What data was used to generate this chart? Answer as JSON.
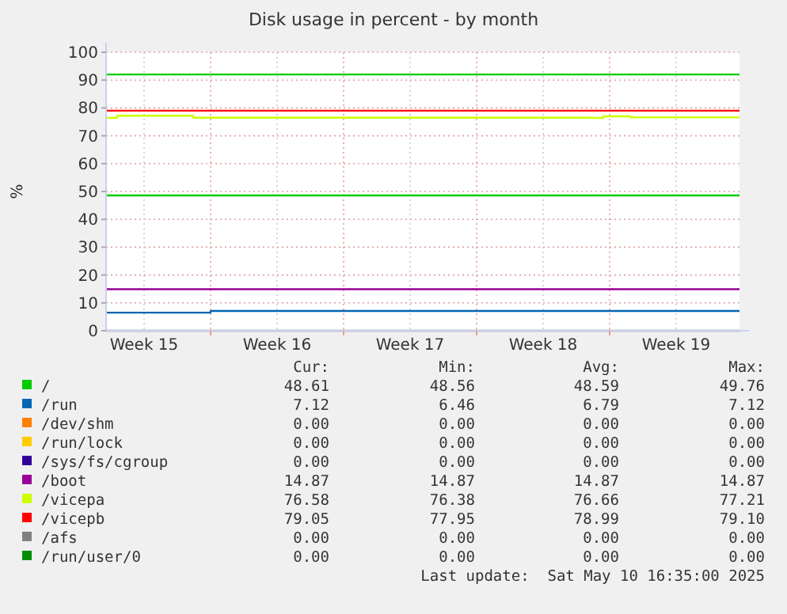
{
  "chart_data": {
    "type": "line",
    "title": "Disk usage in percent - by month",
    "ylabel": "%",
    "xlim": [
      "2025-04-08T12:00",
      "2025-05-11T20:00"
    ],
    "xticks": [
      {
        "value": "2025-04-10T12:00",
        "label": "Week 15"
      },
      {
        "value": "2025-04-14T00:00",
        "label": null
      },
      {
        "value": "2025-04-17T12:00",
        "label": "Week 16"
      },
      {
        "value": "2025-04-21T00:00",
        "label": null
      },
      {
        "value": "2025-04-24T12:00",
        "label": "Week 17"
      },
      {
        "value": "2025-04-28T00:00",
        "label": null
      },
      {
        "value": "2025-05-01T12:00",
        "label": "Week 18"
      },
      {
        "value": "2025-05-05T00:00",
        "label": null
      },
      {
        "value": "2025-05-08T12:00",
        "label": "Week 19"
      }
    ],
    "ylim": [
      0,
      100
    ],
    "yticks": [
      0,
      10,
      20,
      30,
      40,
      50,
      60,
      70,
      80,
      90,
      100
    ],
    "grid": true,
    "legend": "bottom",
    "line_style": "solid",
    "marker": "none",
    "ref_lines": [
      {
        "axis": "y",
        "value": 92,
        "color": "#00cc00"
      }
    ],
    "series": [
      {
        "name": "/",
        "color": "#00cc00",
        "x": [
          "2025-04-08T12:00",
          "2025-04-24T00:00",
          "2025-05-11T20:00"
        ],
        "values": [
          48.6,
          48.6,
          48.6
        ]
      },
      {
        "name": "/run",
        "color": "#0066b3",
        "x": [
          "2025-04-08T12:00",
          "2025-04-14T00:00",
          "2025-04-14T00:00",
          "2025-05-11T20:00"
        ],
        "values": [
          6.5,
          6.5,
          7.1,
          7.1
        ]
      },
      {
        "name": "/dev/shm",
        "color": "#ff8000"
      },
      {
        "name": "/run/lock",
        "color": "#ffcc00"
      },
      {
        "name": "/sys/fs/cgroup",
        "color": "#330099"
      },
      {
        "name": "/boot",
        "color": "#990099",
        "x": [
          "2025-04-08T12:00",
          "2025-05-11T20:00"
        ],
        "values": [
          14.9,
          14.9
        ]
      },
      {
        "name": "/vicepa",
        "color": "#ccff00",
        "x": [
          "2025-04-08T12:00",
          "2025-04-09T02:00",
          "2025-04-09T02:00",
          "2025-04-13T02:00",
          "2025-04-13T02:00",
          "2025-05-04T00:00",
          "2025-05-04T00:00",
          "2025-05-04T16:00",
          "2025-05-04T16:00",
          "2025-05-06T02:00",
          "2025-05-06T02:00",
          "2025-05-11T20:00"
        ],
        "values": [
          76.4,
          76.4,
          77.2,
          77.2,
          76.5,
          76.5,
          76.4,
          76.4,
          77.0,
          77.0,
          76.6,
          76.6
        ]
      },
      {
        "name": "/vicepb",
        "color": "#ff0000",
        "x": [
          "2025-04-08T12:00",
          "2025-05-11T20:00"
        ],
        "values": [
          79.0,
          79.0
        ]
      },
      {
        "name": "/afs",
        "color": "#808080",
        "x": [
          "2025-04-08T12:00",
          "2025-05-11T20:00"
        ],
        "values": [
          0,
          0
        ]
      },
      {
        "name": "/run/user/0",
        "color": "#008f00"
      }
    ],
    "annotations": [
      "Cur:",
      "Min:",
      "Avg:",
      "Max:",
      "48.61",
      "48.56",
      "48.59",
      "49.76",
      "7.12",
      "6.46",
      "6.79",
      "7.12",
      "0.00",
      "0.00",
      "0.00",
      "0.00",
      "0.00",
      "0.00",
      "0.00",
      "0.00",
      "0.00",
      "0.00",
      "0.00",
      "0.00",
      "14.87",
      "14.87",
      "14.87",
      "14.87",
      "76.58",
      "76.38",
      "76.66",
      "77.21",
      "79.05",
      "77.95",
      "78.99",
      "79.10",
      "0.00",
      "0.00",
      "0.00",
      "0.00",
      "0.00",
      "0.00",
      "0.00",
      "0.00",
      "Last update:  Sat May 10 16:35:00 2025"
    ]
  }
}
